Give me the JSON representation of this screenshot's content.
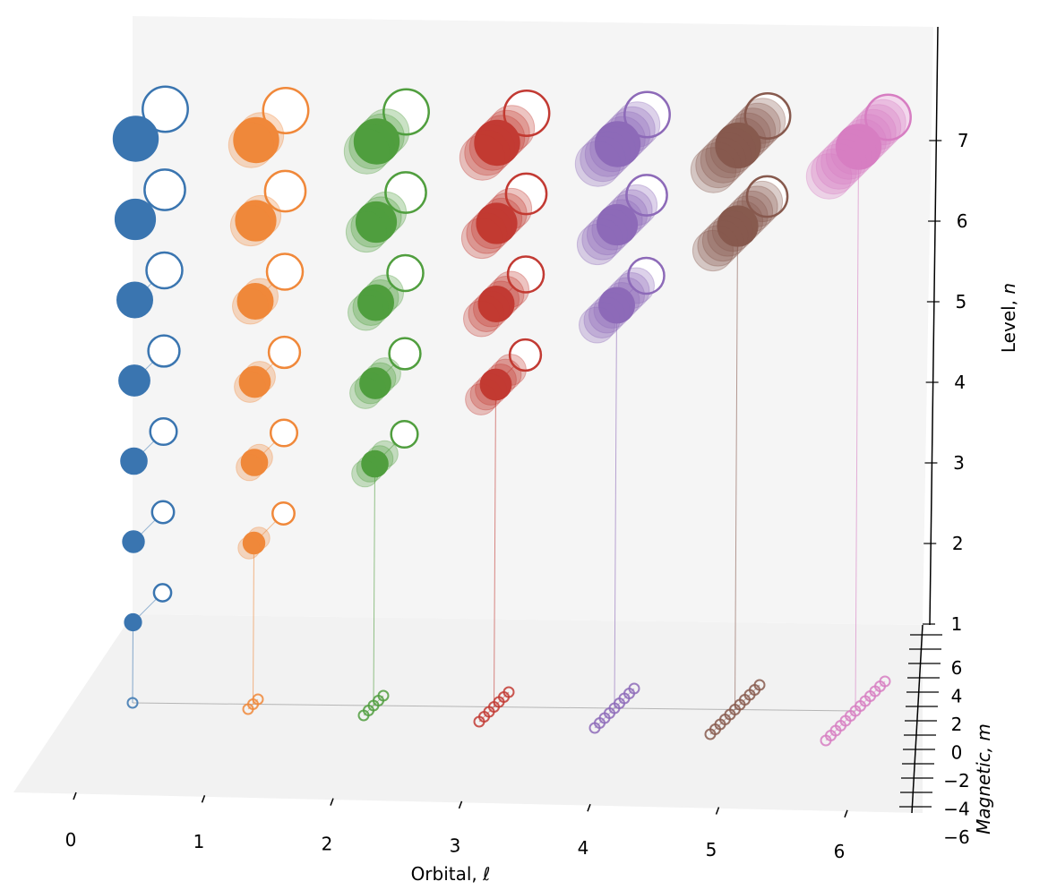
{
  "chart_data": {
    "type": "scatter",
    "projection": "3d",
    "x_axis": {
      "label": "Orbital, ℓ",
      "ticks": [
        "0",
        "1",
        "2",
        "3",
        "4",
        "5",
        "6"
      ],
      "range": [
        0,
        6
      ]
    },
    "y_axis": {
      "label": "Magnetic, m",
      "ticks": [
        "−6",
        "−4",
        "−2",
        "0",
        "2",
        "4",
        "6"
      ],
      "range": [
        -6,
        6
      ]
    },
    "z_axis": {
      "label": "Level, n",
      "ticks": [
        "1",
        "2",
        "3",
        "4",
        "5",
        "6",
        "7"
      ],
      "range": [
        0,
        7.5
      ]
    },
    "grid": false,
    "legend": "none",
    "colors": [
      "#3a75b0",
      "#f0883a",
      "#509e3e",
      "#c23a33",
      "#8d6ab8",
      "#875a4e",
      "#d77ec2"
    ],
    "series_note_marker": "open circle = projection onto the (ℓ, m) floor and onto the m = 6 back wall; filled circle = state (ℓ, m, n)",
    "series": [
      {
        "orbital": 0,
        "m_values": [
          0
        ],
        "n_values": [
          1,
          2,
          3,
          4,
          5,
          6,
          7
        ]
      },
      {
        "orbital": 1,
        "m_values": [
          -1,
          0,
          1
        ],
        "n_values": [
          2,
          3,
          4,
          5,
          6,
          7
        ]
      },
      {
        "orbital": 2,
        "m_values": [
          -2,
          -1,
          0,
          1,
          2
        ],
        "n_values": [
          3,
          4,
          5,
          6,
          7
        ]
      },
      {
        "orbital": 3,
        "m_values": [
          -3,
          -2,
          -1,
          0,
          1,
          2,
          3
        ],
        "n_values": [
          4,
          5,
          6,
          7
        ]
      },
      {
        "orbital": 4,
        "m_values": [
          -4,
          -3,
          -2,
          -1,
          0,
          1,
          2,
          3,
          4
        ],
        "n_values": [
          5,
          6,
          7
        ]
      },
      {
        "orbital": 5,
        "m_values": [
          -5,
          -4,
          -3,
          -2,
          -1,
          0,
          1,
          2,
          3,
          4,
          5
        ],
        "n_values": [
          6,
          7
        ]
      },
      {
        "orbital": 6,
        "m_values": [
          -6,
          -5,
          -4,
          -3,
          -2,
          -1,
          0,
          1,
          2,
          3,
          4,
          5,
          6
        ],
        "n_values": [
          7
        ]
      }
    ]
  }
}
